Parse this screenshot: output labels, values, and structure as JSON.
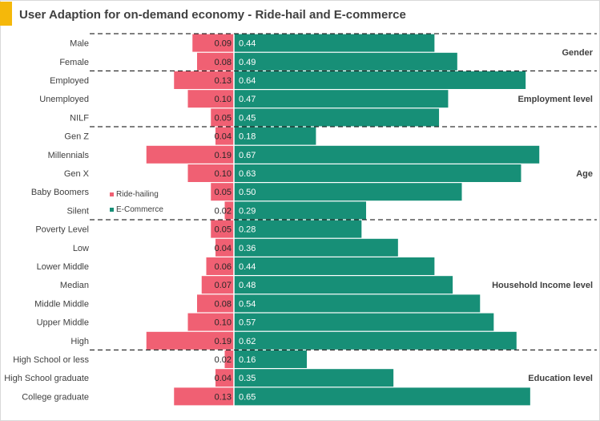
{
  "title": "User Adaption for on-demand economy - Ride-hail and E-commerce",
  "chart_data": {
    "type": "bar",
    "orientation": "horizontal-diverging",
    "categories": [
      "Male",
      "Female",
      "Employed",
      "Unemployed",
      "NILF",
      "Gen Z",
      "Millennials",
      "Gen X",
      "Baby Boomers",
      "Silent",
      "Poverty Level",
      "Low",
      "Lower Middle",
      "Median",
      "Middle Middle",
      "Upper Middle",
      "High",
      "High School or less",
      "High School graduate",
      "College graduate"
    ],
    "series": [
      {
        "name": "Ride-hailing",
        "color": "#f06073",
        "values": [
          0.09,
          0.08,
          0.13,
          0.1,
          0.05,
          0.04,
          0.19,
          0.1,
          0.05,
          0.02,
          0.05,
          0.04,
          0.06,
          0.07,
          0.08,
          0.1,
          0.19,
          0.02,
          0.04,
          0.13
        ]
      },
      {
        "name": "E-Commerce",
        "color": "#178f77",
        "values": [
          0.44,
          0.49,
          0.64,
          0.47,
          0.45,
          0.18,
          0.67,
          0.63,
          0.5,
          0.29,
          0.28,
          0.36,
          0.44,
          0.48,
          0.54,
          0.57,
          0.62,
          0.16,
          0.35,
          0.65
        ]
      }
    ],
    "value_labels": {
      "ride": [
        "0.09",
        "0.08",
        "0.13",
        "0.10",
        "0.05",
        "0.04",
        "0.19",
        "0.10",
        "0.05",
        "0.02",
        "0.05",
        "0.04",
        "0.06",
        "0.07",
        "0.08",
        "0.10",
        "0.19",
        "0.02",
        "0.04",
        "0.13"
      ],
      "ecom": [
        "0.44",
        "0.49",
        "0.64",
        "0.47",
        "0.45",
        "0.18",
        "0.67",
        "0.63",
        "0.50",
        "0.29",
        "0.28",
        "0.36",
        "0.44",
        "0.48",
        "0.54",
        "0.57",
        "0.62",
        "0.16",
        "0.35",
        "0.65"
      ]
    },
    "groups": [
      {
        "label": "Gender",
        "start": 0,
        "end": 1
      },
      {
        "label": "Employment level",
        "start": 2,
        "end": 4
      },
      {
        "label": "Age",
        "start": 5,
        "end": 9
      },
      {
        "label": "Household Income level",
        "start": 10,
        "end": 16
      },
      {
        "label": "Education level",
        "start": 17,
        "end": 19
      }
    ],
    "legend": {
      "position": "inside-left",
      "items": [
        "Ride-hailing",
        "E-Commerce"
      ]
    },
    "grid": false
  }
}
